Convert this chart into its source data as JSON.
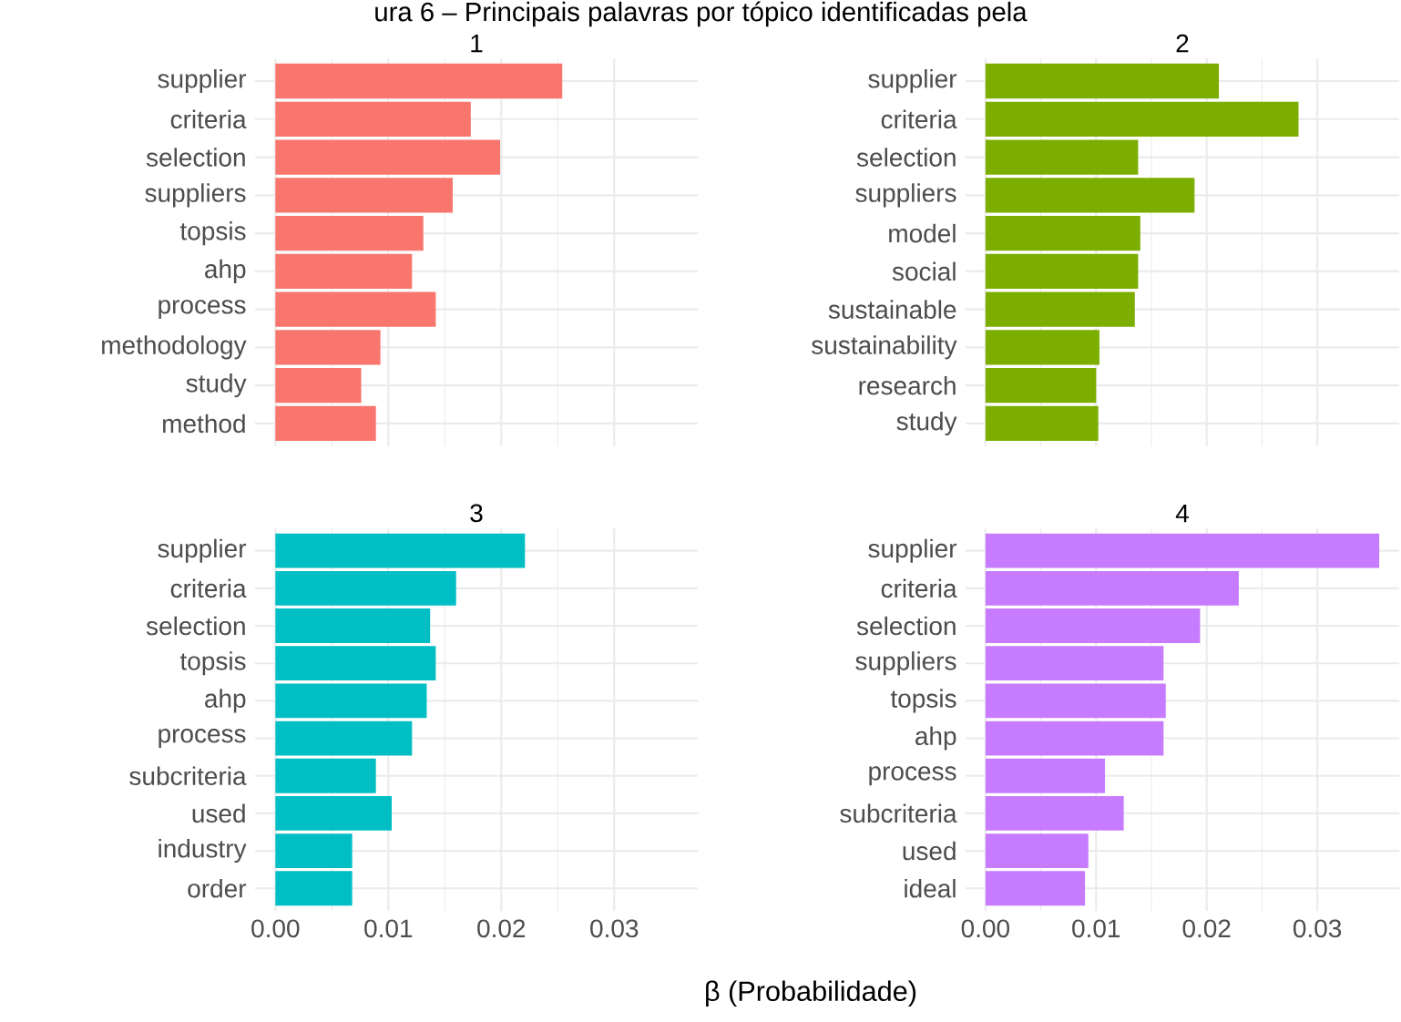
{
  "chart_data": [
    {
      "type": "bar",
      "orientation": "horizontal",
      "title": "1",
      "annotations": [
        "ura 6 – Principais palavras por tópico identificadas pela"
      ],
      "categories": [
        "supplier",
        "criteria",
        "selection",
        "suppliers",
        "topsis",
        "ahp",
        "process",
        "methodology",
        "study",
        "method"
      ],
      "values": [
        0.0254,
        0.0173,
        0.0199,
        0.0157,
        0.0131,
        0.0121,
        0.0142,
        0.0093,
        0.0076,
        0.0089
      ],
      "color": "#f8766d",
      "xlim": [
        -0.0018,
        0.0374
      ],
      "xticks": [
        0,
        0.01,
        0.02,
        0.03
      ],
      "grid": true,
      "tick_labels": "y"
    },
    {
      "type": "bar",
      "orientation": "horizontal",
      "title": "2",
      "categories": [
        "supplier",
        "criteria",
        "selection",
        "suppliers",
        "model",
        "social",
        "sustainable",
        "sustainability",
        "research",
        "study"
      ],
      "values": [
        0.0211,
        0.0283,
        0.0138,
        0.0189,
        0.014,
        0.0138,
        0.0135,
        0.0103,
        0.01,
        0.0102
      ],
      "color": "#7cae00",
      "xlim": [
        -0.0018,
        0.0374
      ],
      "xticks": [
        0,
        0.01,
        0.02,
        0.03
      ],
      "grid": true,
      "tick_labels": "y"
    },
    {
      "type": "bar",
      "orientation": "horizontal",
      "title": "3",
      "xlabel": "β (Probabilidade)",
      "categories": [
        "supplier",
        "criteria",
        "selection",
        "topsis",
        "ahp",
        "process",
        "subcriteria",
        "used",
        "industry",
        "order"
      ],
      "values": [
        0.0221,
        0.016,
        0.0137,
        0.0142,
        0.0134,
        0.0121,
        0.0089,
        0.0103,
        0.0068,
        0.0068
      ],
      "color": "#00bfc4",
      "xlim": [
        -0.0018,
        0.0374
      ],
      "xticks": [
        {
          "value": 0,
          "label": "0.00"
        },
        0.01,
        0.02,
        0.03
      ],
      "grid": true
    },
    {
      "type": "bar",
      "orientation": "horizontal",
      "title": "4",
      "categories": [
        "supplier",
        "criteria",
        "selection",
        "suppliers",
        "topsis",
        "ahp",
        "process",
        "subcriteria",
        "used",
        "ideal"
      ],
      "values": [
        0.0356,
        0.0229,
        0.0194,
        0.0161,
        0.0163,
        0.0161,
        0.0108,
        0.0125,
        0.0093,
        0.009
      ],
      "color": "#c77cff",
      "xlim": [
        -0.0018,
        0.0374
      ],
      "xticks": [
        {
          "value": 0,
          "label": "0.00"
        },
        0.01,
        0.02,
        0.03
      ],
      "grid": true
    }
  ]
}
